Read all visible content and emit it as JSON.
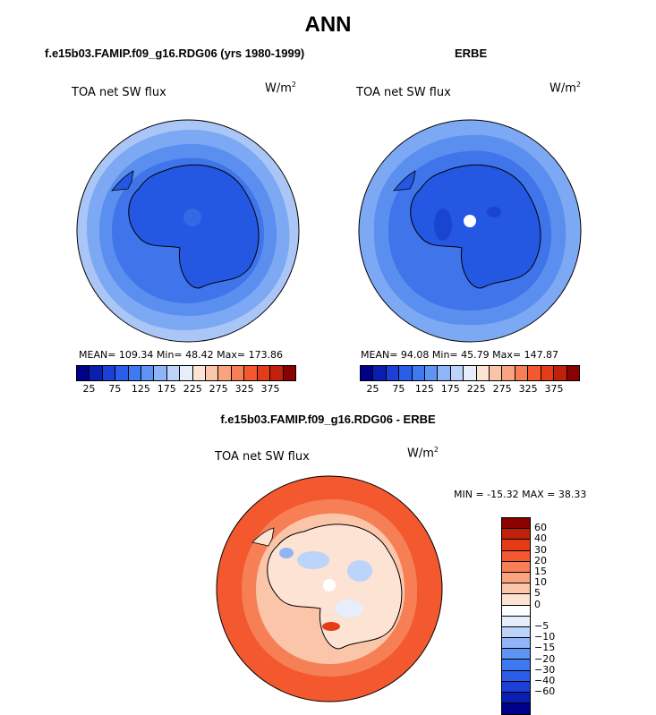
{
  "title": "ANN",
  "panels": {
    "model": {
      "title": "f.e15b03.FAMIP.f09_g16.RDG06 (yrs 1980-1999)",
      "variable": "TOA net SW flux",
      "units_base": "W/m",
      "units_exp": "2",
      "stats": "MEAN=  109.34   Min=   48.42   Max=  173.86"
    },
    "obs": {
      "title": "ERBE",
      "variable": "TOA net SW flux",
      "units_base": "W/m",
      "units_exp": "2",
      "stats": "MEAN=   94.08   Min=   45.79   Max=  147.87"
    },
    "diff": {
      "title": "f.e15b03.FAMIP.f09_g16.RDG06 - ERBE",
      "variable": "TOA net SW flux",
      "units_base": "W/m",
      "units_exp": "2",
      "stats": "MIN = -15.32  MAX =   38.33"
    }
  },
  "abs_colorbar": {
    "colors": [
      "#00008b",
      "#0a1fb0",
      "#1c3fd6",
      "#2a5ee8",
      "#3d79f0",
      "#5e95f5",
      "#8fb5f8",
      "#bcd3fa",
      "#e6eefc",
      "#fde3d3",
      "#fbc5aa",
      "#f9a47f",
      "#f67f55",
      "#f3582f",
      "#e43c16",
      "#c0210a",
      "#8b0000"
    ],
    "tick_labels": [
      "25",
      "75",
      "125",
      "175",
      "225",
      "275",
      "325",
      "375"
    ]
  },
  "diff_colorbar": {
    "colors": [
      "#8b0000",
      "#c0210a",
      "#e43c16",
      "#f3582f",
      "#f67f55",
      "#f9a47f",
      "#fbc5aa",
      "#fde3d3",
      "#ffffff",
      "#e6eefc",
      "#bcd3fa",
      "#8fb5f8",
      "#5e95f5",
      "#3d79f0",
      "#2a5ee8",
      "#1c3fd6",
      "#0a1fb0",
      "#00008b"
    ],
    "tick_labels": [
      "60",
      "40",
      "30",
      "20",
      "15",
      "10",
      "5",
      "0",
      "−5",
      "−10",
      "−15",
      "−20",
      "−30",
      "−40",
      "−60"
    ]
  }
}
